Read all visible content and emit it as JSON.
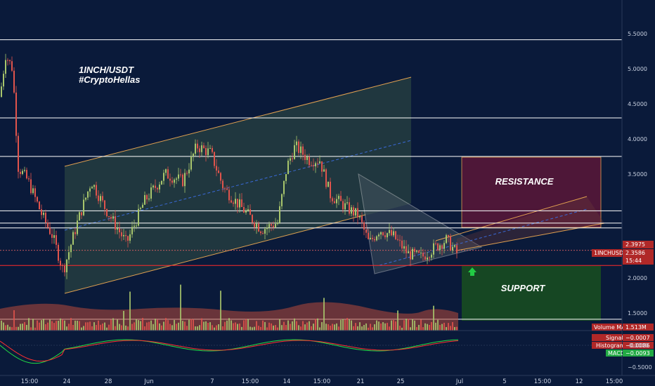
{
  "chart_data": {
    "type": "candlestick",
    "title_lines": [
      "1INCH/USDT",
      "#CryptoHellas"
    ],
    "y_axis": {
      "ticks": [
        "5.5000",
        "5.0000",
        "4.5000",
        "4.0000",
        "3.5000",
        "2.0000",
        "1.5000"
      ],
      "tick_values": [
        5.5,
        5.0,
        4.5,
        4.0,
        3.5,
        2.0,
        1.5
      ]
    },
    "x_axis": {
      "ticks": [
        "15:00",
        "24",
        "28",
        "Jun",
        "7",
        "15:00",
        "14",
        "15:00",
        "21",
        "25",
        "Jul",
        "5",
        "15:00",
        "12",
        "15:00"
      ]
    },
    "horizontal_levels": [
      {
        "label": "5.4134",
        "value": 5.4134,
        "color": "#ffffff"
      },
      {
        "label": "4.3001",
        "value": 4.3001,
        "color": "#ffffff"
      },
      {
        "label": "3.7507",
        "value": 3.7507,
        "color": "#ffffff"
      },
      {
        "label": "2.9691",
        "value": 2.9691,
        "color": "#ffffff"
      },
      {
        "label": "2.7922",
        "value": 2.7922,
        "color": "#ffffff"
      },
      {
        "label": "2.7215",
        "value": 2.7215,
        "color": "#ffffff"
      },
      {
        "label": "2.1800",
        "value": 2.18,
        "color": "#ff2a2a"
      },
      {
        "label": "1.4113",
        "value": 1.4113,
        "color": "#ffffff"
      }
    ],
    "price_tags": {
      "level_2_3975": "2.3975",
      "symbol": "1INCHUSDT",
      "last_price": "2.3586",
      "countdown": "15:44",
      "volume_ma_label": "Volume MA",
      "volume_ma_value": "1.513M"
    },
    "zones": {
      "resistance": {
        "label": "RESISTANCE",
        "top": 3.7507,
        "bottom": 2.7922
      },
      "support": {
        "label": "SUPPORT",
        "top": 2.18,
        "bottom": 1.4113
      }
    },
    "indicator": {
      "signal_label": "Signal",
      "signal_value": "−0.0007",
      "histogram_label": "Histogram",
      "histogram_value": "−0.0086",
      "macd_label": "MACD",
      "macd_value": "−0.0093",
      "ticks": [
        "0.0000",
        "−0.5000"
      ]
    },
    "colors": {
      "background": "#0a1a3a",
      "up": "#a8c66c",
      "down": "#e0544c",
      "resistance_zone": "#6a1a40",
      "support_zone": "#1e5a2a",
      "channel_fill": "#2a4a3a",
      "channel_line": "#e0a050",
      "triangle": "#d8d8d8"
    }
  }
}
